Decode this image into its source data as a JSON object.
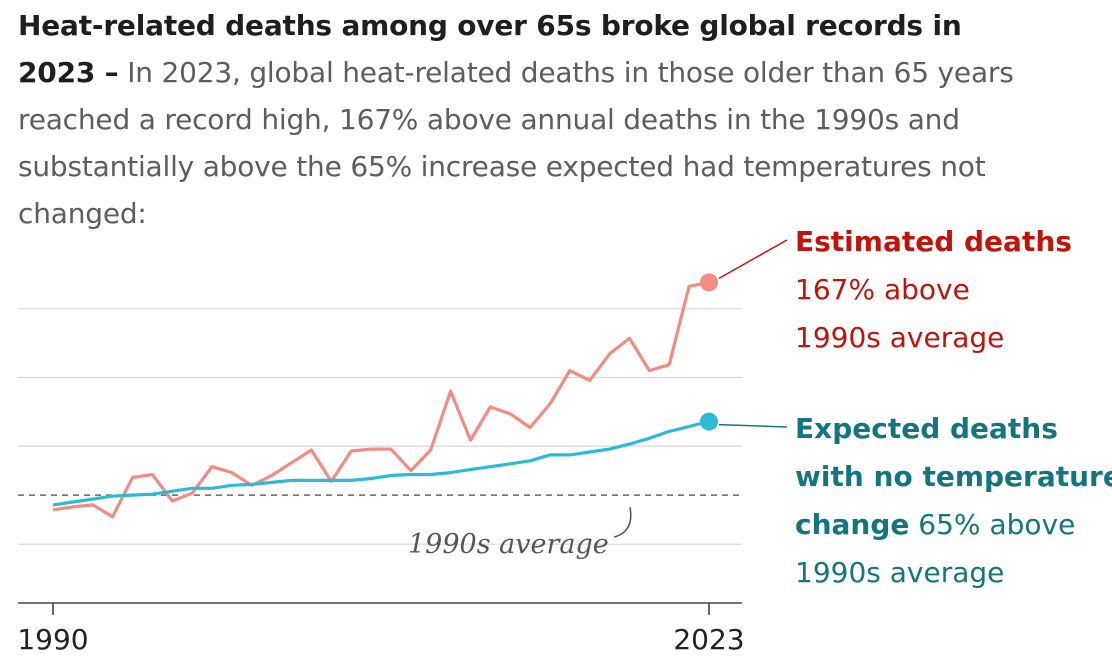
{
  "headline": {
    "title": "Heat-related deaths among over 65s broke global records in 2023 –",
    "subtitle": "In 2023, global heat-related deaths in those older than 65 years reached a record high, 167% above annual deaths in the 1990s and substantially above the 65% increase expected had temperatures not changed:"
  },
  "chart_data": {
    "type": "line",
    "x": [
      1990,
      1991,
      1992,
      1993,
      1994,
      1995,
      1996,
      1997,
      1998,
      1999,
      2000,
      2001,
      2002,
      2003,
      2004,
      2005,
      2006,
      2007,
      2008,
      2009,
      2010,
      2011,
      2012,
      2013,
      2014,
      2015,
      2016,
      2017,
      2018,
      2019,
      2020,
      2021,
      2022,
      2023
    ],
    "xlabel": "",
    "ylabel": "",
    "x_ticks": [
      "1990",
      "2023"
    ],
    "grid": true,
    "series": [
      {
        "name": "Estimated deaths",
        "label_lines": [
          "Estimated deaths",
          "167% above",
          "1990s average"
        ],
        "color": "#f28b82",
        "label_color": "#c0140b",
        "values": [
          0.95,
          0.98,
          1.0,
          0.88,
          1.28,
          1.31,
          1.04,
          1.12,
          1.39,
          1.33,
          1.2,
          1.3,
          1.43,
          1.56,
          1.24,
          1.55,
          1.57,
          1.57,
          1.35,
          1.56,
          2.16,
          1.66,
          2.0,
          1.93,
          1.79,
          2.03,
          2.37,
          2.27,
          2.54,
          2.7,
          2.37,
          2.43,
          3.23,
          3.27
        ]
      },
      {
        "name": "Expected deaths with no temperature change",
        "label_lines": [
          "Expected deaths",
          "with no temperature",
          "change"
        ],
        "label_suffix": "65% above",
        "label_last": "1990s average",
        "color": "#2bbcd4",
        "label_color": "#137580",
        "values": [
          1.0,
          1.03,
          1.06,
          1.09,
          1.1,
          1.11,
          1.14,
          1.17,
          1.17,
          1.2,
          1.21,
          1.23,
          1.25,
          1.25,
          1.25,
          1.25,
          1.27,
          1.3,
          1.31,
          1.31,
          1.33,
          1.36,
          1.39,
          1.42,
          1.45,
          1.51,
          1.51,
          1.54,
          1.57,
          1.62,
          1.68,
          1.75,
          1.8,
          1.85
        ]
      }
    ],
    "reference_line": {
      "value": 1.1,
      "label": "1990s average",
      "style": "dashed"
    },
    "ylim": [
      0,
      3.6
    ],
    "gridlines": [
      1.6,
      2.3,
      3.0,
      0.6
    ]
  }
}
